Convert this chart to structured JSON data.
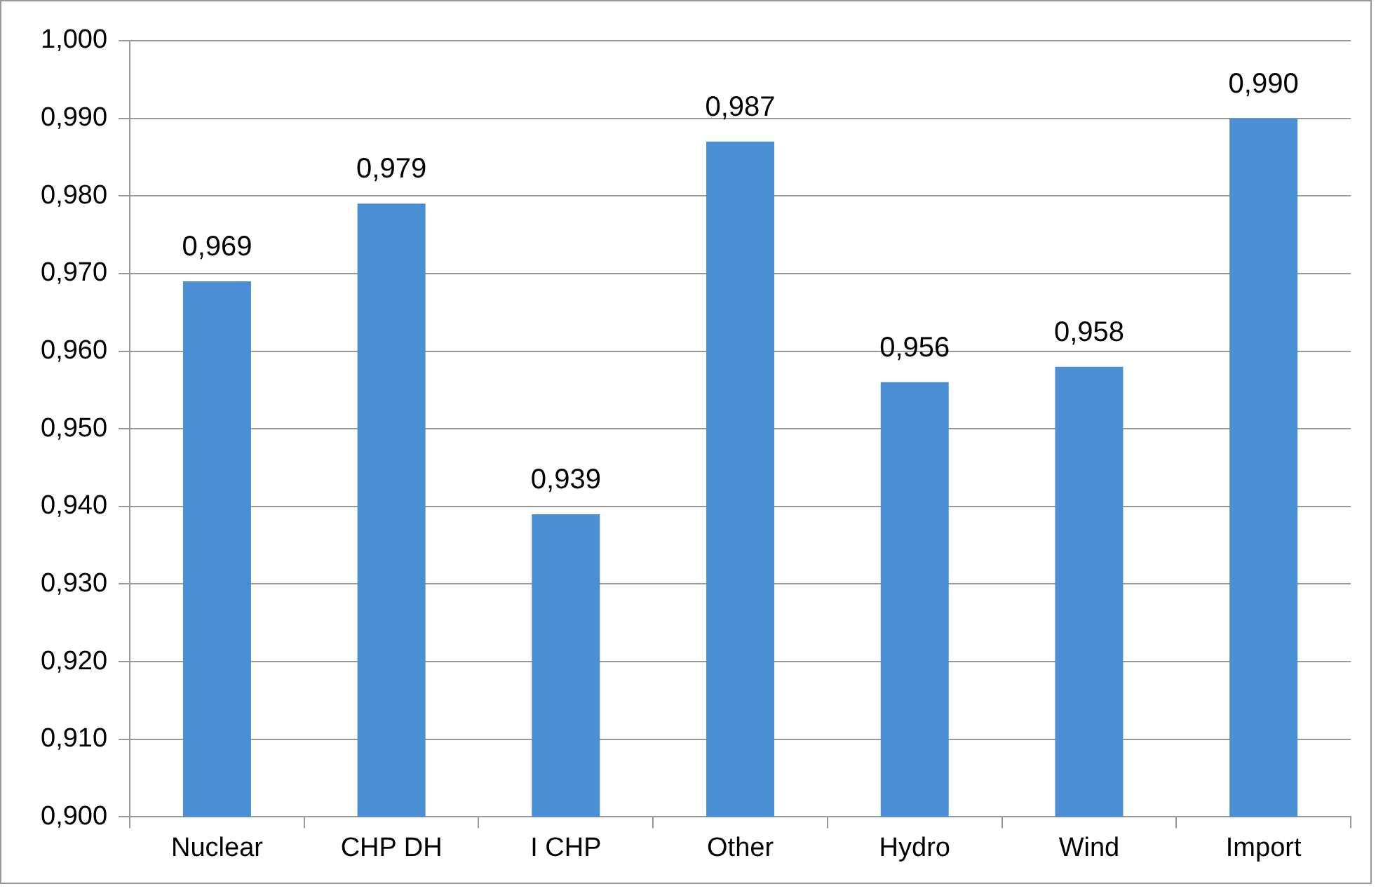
{
  "chart_data": {
    "type": "bar",
    "categories": [
      "Nuclear",
      "CHP DH",
      "I CHP",
      "Other",
      "Hydro",
      "Wind",
      "Import"
    ],
    "values": [
      0.969,
      0.979,
      0.939,
      0.987,
      0.956,
      0.958,
      0.99
    ],
    "value_labels": [
      "0,969",
      "0,979",
      "0,939",
      "0,987",
      "0,956",
      "0,958",
      "0,990"
    ],
    "color": "#4a8fd4",
    "ylim": [
      0.9,
      1.0
    ],
    "yticks": [
      {
        "value": 0.9,
        "label": "0,900"
      },
      {
        "value": 0.91,
        "label": "0,910"
      },
      {
        "value": 0.92,
        "label": "0,920"
      },
      {
        "value": 0.93,
        "label": "0,930"
      },
      {
        "value": 0.94,
        "label": "0,940"
      },
      {
        "value": 0.95,
        "label": "0,950"
      },
      {
        "value": 0.96,
        "label": "0,960"
      },
      {
        "value": 0.97,
        "label": "0,970"
      },
      {
        "value": 0.98,
        "label": "0,980"
      },
      {
        "value": 0.99,
        "label": "0,990"
      },
      {
        "value": 1.0,
        "label": "1,000"
      }
    ],
    "grid": "y",
    "legend": false
  }
}
